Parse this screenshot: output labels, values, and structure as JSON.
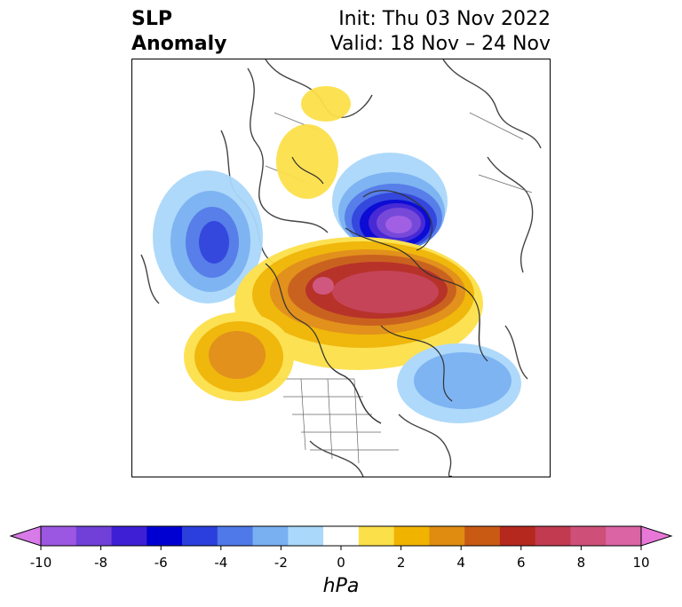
{
  "title": {
    "left_line1": "SLP",
    "left_line2": "Anomaly",
    "init": "Init: Thu 03 Nov 2022",
    "valid": "Valid: 18 Nov – 24 Nov"
  },
  "colorbar": {
    "unit": "hPa",
    "ticks": [
      "-10",
      "-8",
      "-6",
      "-4",
      "-2",
      "0",
      "2",
      "4",
      "6",
      "8",
      "10"
    ],
    "colors": [
      "#d87ae8",
      "#9c57e2",
      "#7040d8",
      "#3e1fd4",
      "#0000d2",
      "#2a3fdc",
      "#4f78e8",
      "#78b0f2",
      "#aad8fa",
      "#ffffff",
      "#fce04a",
      "#f0b400",
      "#e08c10",
      "#c85a14",
      "#b4281e",
      "#c23a50",
      "#ce5078",
      "#da64a4",
      "#e878d8"
    ]
  },
  "map": {
    "projection": "north-polar-stereographic",
    "anomalies": [
      {
        "name": "Arctic/Greenland negative center",
        "sign": "negative",
        "peak_hPa": -9
      },
      {
        "name": "North Atlantic positive center",
        "sign": "positive",
        "peak_hPa": 8
      },
      {
        "name": "East Asia negative center",
        "sign": "negative",
        "peak_hPa": -5
      },
      {
        "name": "Northwest Pacific positive center",
        "sign": "positive",
        "peak_hPa": 4
      },
      {
        "name": "North Pacific negative center",
        "sign": "negative",
        "peak_hPa": -3
      },
      {
        "name": "Scandinavia positive center",
        "sign": "positive",
        "peak_hPa": 2
      },
      {
        "name": "Central Asia positive center",
        "sign": "positive",
        "peak_hPa": 2
      }
    ]
  }
}
